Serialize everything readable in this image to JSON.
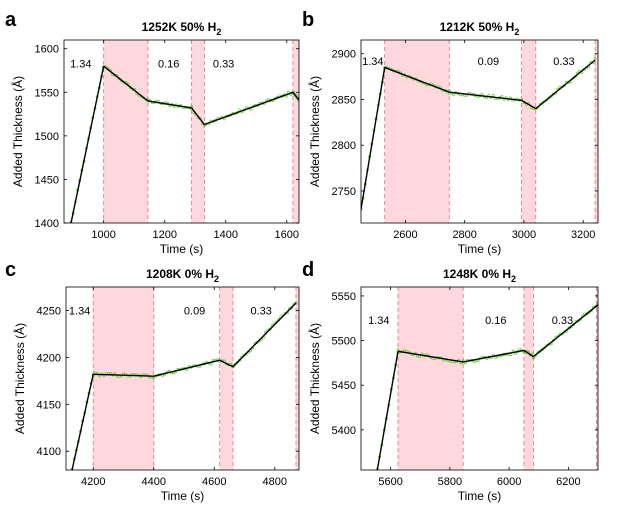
{
  "chart_data": [
    {
      "panel_letter": "a",
      "type": "line",
      "title": "1252K 50% H",
      "title_sub": "2",
      "xlabel": "Time (s)",
      "ylabel": "Added Thickness (Å)",
      "xlim": [
        870,
        1640
      ],
      "ylim": [
        1400,
        1610
      ],
      "xticks": [
        1000,
        1200,
        1400,
        1600
      ],
      "yticks": [
        1400,
        1450,
        1500,
        1550,
        1600
      ],
      "shaded_regions": [
        [
          1000,
          1145
        ],
        [
          1288,
          1330
        ],
        [
          1620,
          1640
        ]
      ],
      "region_labels": [
        {
          "text": "1.34",
          "x": 925,
          "y": 1583
        },
        {
          "text": "0.16",
          "x": 1213,
          "y": 1583
        },
        {
          "text": "0.33",
          "x": 1393,
          "y": 1583
        }
      ],
      "fit_segments": [
        [
          [
            893,
            1400
          ],
          [
            1000,
            1580
          ]
        ],
        [
          [
            1000,
            1580
          ],
          [
            1145,
            1540
          ]
        ],
        [
          [
            1145,
            1540
          ],
          [
            1288,
            1532
          ]
        ],
        [
          [
            1288,
            1532
          ],
          [
            1330,
            1513
          ]
        ],
        [
          [
            1330,
            1513
          ],
          [
            1620,
            1550
          ]
        ],
        [
          [
            1620,
            1550
          ],
          [
            1640,
            1541
          ]
        ]
      ]
    },
    {
      "panel_letter": "b",
      "type": "line",
      "title": "1212K 50% H",
      "title_sub": "2",
      "xlabel": "Time (s)",
      "ylabel": "Added Thickness (Å)",
      "xlim": [
        2450,
        3250
      ],
      "ylim": [
        2715,
        2915
      ],
      "xticks": [
        2600,
        2800,
        3000,
        3200
      ],
      "yticks": [
        2750,
        2800,
        2850,
        2900
      ],
      "shaded_regions": [
        [
          2530,
          2748
        ],
        [
          2992,
          3040
        ],
        [
          3240,
          3250
        ]
      ],
      "region_labels": [
        {
          "text": "1.34",
          "x": 2490,
          "y": 2892
        },
        {
          "text": "0.09",
          "x": 2880,
          "y": 2892
        },
        {
          "text": "0.33",
          "x": 3135,
          "y": 2892
        }
      ],
      "fit_segments": [
        [
          [
            2450,
            2730
          ],
          [
            2530,
            2885
          ]
        ],
        [
          [
            2530,
            2885
          ],
          [
            2748,
            2858
          ]
        ],
        [
          [
            2748,
            2858
          ],
          [
            2992,
            2849
          ]
        ],
        [
          [
            2992,
            2849
          ],
          [
            3040,
            2840
          ]
        ],
        [
          [
            3040,
            2840
          ],
          [
            3240,
            2893
          ]
        ]
      ]
    },
    {
      "panel_letter": "c",
      "type": "line",
      "title": "1208K  0% H",
      "title_sub": "2",
      "xlabel": "Time (s)",
      "ylabel": "Added Thickness (Å)",
      "xlim": [
        4110,
        4880
      ],
      "ylim": [
        4080,
        4275
      ],
      "xticks": [
        4200,
        4400,
        4600,
        4800
      ],
      "yticks": [
        4100,
        4150,
        4200,
        4250
      ],
      "shaded_regions": [
        [
          4200,
          4400
        ],
        [
          4618,
          4662
        ],
        [
          4870,
          4880
        ]
      ],
      "region_labels": [
        {
          "text": "1.34",
          "x": 4155,
          "y": 4250
        },
        {
          "text": "0.09",
          "x": 4535,
          "y": 4250
        },
        {
          "text": "0.33",
          "x": 4755,
          "y": 4250
        }
      ],
      "fit_segments": [
        [
          [
            4130,
            4080
          ],
          [
            4200,
            4182
          ]
        ],
        [
          [
            4200,
            4182
          ],
          [
            4400,
            4180
          ]
        ],
        [
          [
            4400,
            4180
          ],
          [
            4618,
            4197
          ]
        ],
        [
          [
            4618,
            4197
          ],
          [
            4662,
            4190
          ]
        ],
        [
          [
            4662,
            4190
          ],
          [
            4870,
            4258
          ]
        ]
      ]
    },
    {
      "panel_letter": "d",
      "type": "line",
      "title": "1248K  0% H",
      "title_sub": "2",
      "xlabel": "Time (s)",
      "ylabel": "Added Thickness (Å)",
      "xlim": [
        5500,
        6300
      ],
      "ylim": [
        5355,
        5560
      ],
      "xticks": [
        5600,
        5800,
        6000,
        6200
      ],
      "yticks": [
        5400,
        5450,
        5500,
        5550
      ],
      "shaded_regions": [
        [
          5625,
          5845
        ],
        [
          6050,
          6082
        ],
        [
          6295,
          6300
        ]
      ],
      "region_labels": [
        {
          "text": "1.34",
          "x": 5560,
          "y": 5523
        },
        {
          "text": "0.16",
          "x": 5955,
          "y": 5523
        },
        {
          "text": "0.33",
          "x": 6180,
          "y": 5523
        }
      ],
      "fit_segments": [
        [
          [
            5555,
            5355
          ],
          [
            5625,
            5488
          ]
        ],
        [
          [
            5625,
            5488
          ],
          [
            5845,
            5476
          ]
        ],
        [
          [
            5845,
            5476
          ],
          [
            6050,
            5489
          ]
        ],
        [
          [
            6050,
            5489
          ],
          [
            6082,
            5482
          ]
        ],
        [
          [
            6082,
            5482
          ],
          [
            6300,
            5540
          ]
        ]
      ]
    }
  ],
  "colors": {
    "shade": "#ffd8dd",
    "shade_edge": "#e0707a",
    "data_points": "#5acb32",
    "fit_line": "#000000",
    "axis": "#000000"
  }
}
